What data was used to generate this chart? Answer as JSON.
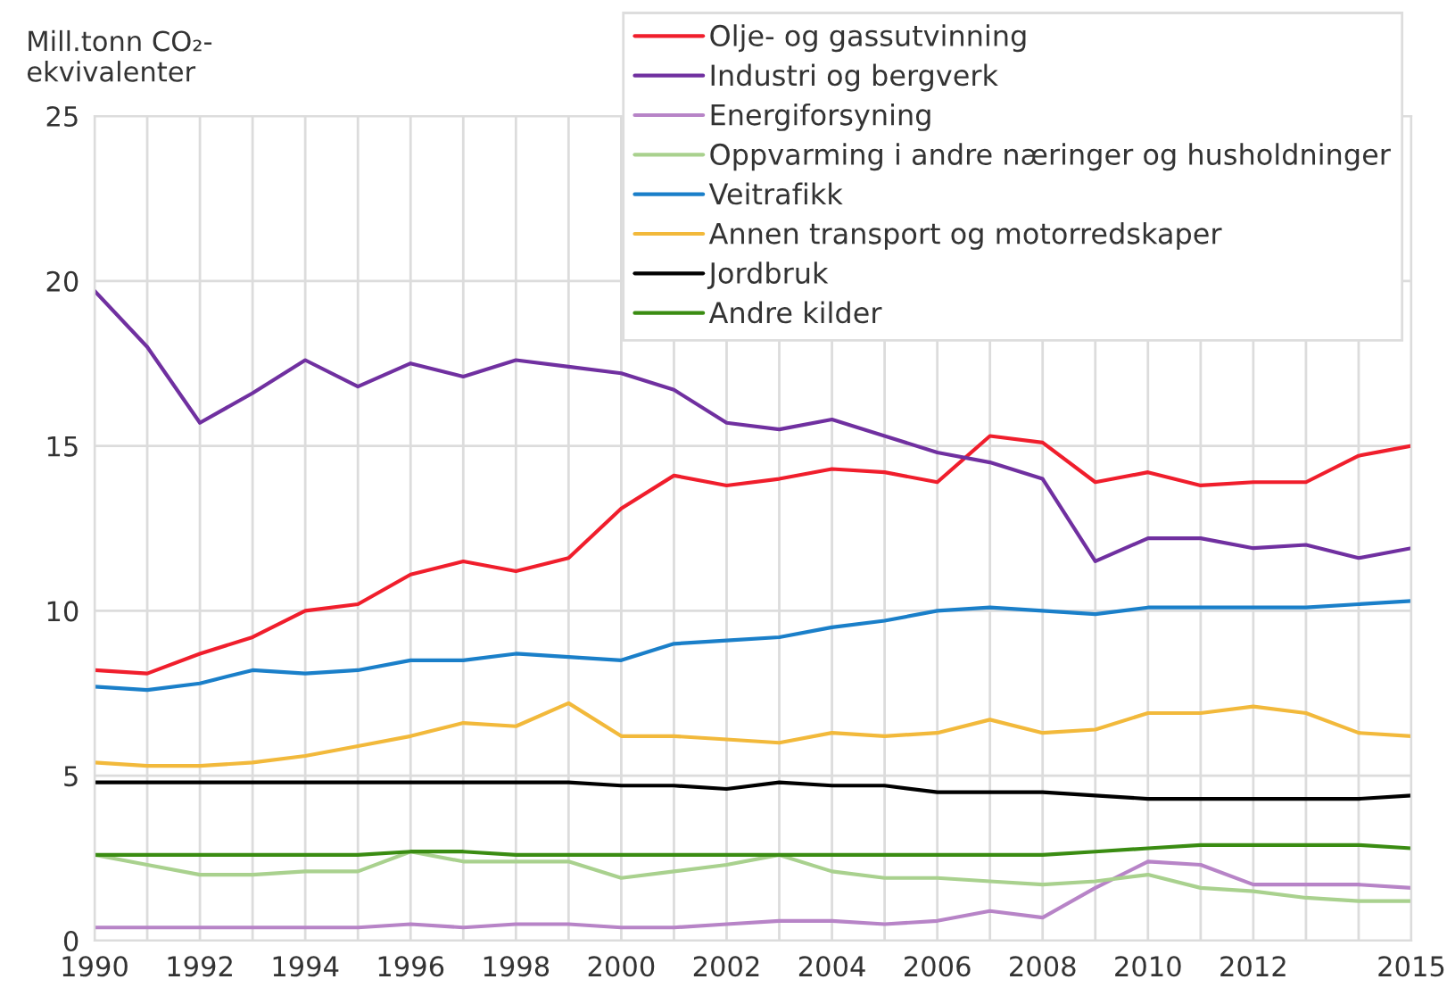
{
  "chart_data": {
    "type": "line",
    "ylabel": "Mill.tonn CO₂-\nekvivalenter",
    "x": [
      1990,
      1991,
      1992,
      1993,
      1994,
      1995,
      1996,
      1997,
      1998,
      1999,
      2000,
      2001,
      2002,
      2003,
      2004,
      2005,
      2006,
      2007,
      2008,
      2009,
      2010,
      2011,
      2012,
      2013,
      2014,
      2015
    ],
    "series": [
      {
        "name": "Olje- og gassutvinning",
        "color": "#f01e2c",
        "values": [
          8.2,
          8.1,
          8.7,
          9.2,
          10.0,
          10.2,
          11.1,
          11.5,
          11.2,
          11.6,
          13.1,
          14.1,
          13.8,
          14.0,
          14.3,
          14.2,
          13.9,
          15.3,
          15.1,
          13.9,
          14.2,
          13.8,
          13.9,
          13.9,
          14.7,
          15.0
        ]
      },
      {
        "name": "Industri og bergverk",
        "color": "#7030a0",
        "values": [
          19.7,
          18.0,
          15.7,
          16.6,
          17.6,
          16.8,
          17.5,
          17.1,
          17.6,
          17.4,
          17.2,
          16.7,
          15.7,
          15.5,
          15.8,
          15.3,
          14.8,
          14.5,
          14.0,
          11.5,
          12.2,
          12.2,
          11.9,
          12.0,
          11.6,
          11.9
        ]
      },
      {
        "name": "Energiforsyning",
        "color": "#b784c7",
        "values": [
          0.4,
          0.4,
          0.4,
          0.4,
          0.4,
          0.4,
          0.5,
          0.4,
          0.5,
          0.5,
          0.4,
          0.4,
          0.5,
          0.6,
          0.6,
          0.5,
          0.6,
          0.9,
          0.7,
          1.6,
          2.4,
          2.3,
          1.7,
          1.7,
          1.7,
          1.6
        ]
      },
      {
        "name": "Oppvarming i andre næringer og husholdninger",
        "color": "#a9d18e",
        "values": [
          2.6,
          2.3,
          2.0,
          2.0,
          2.1,
          2.1,
          2.7,
          2.4,
          2.4,
          2.4,
          1.9,
          2.1,
          2.3,
          2.6,
          2.1,
          1.9,
          1.9,
          1.8,
          1.7,
          1.8,
          2.0,
          1.6,
          1.5,
          1.3,
          1.2,
          1.2
        ]
      },
      {
        "name": "Veitrafikk",
        "color": "#1a7fc9",
        "values": [
          7.7,
          7.6,
          7.8,
          8.2,
          8.1,
          8.2,
          8.5,
          8.5,
          8.7,
          8.6,
          8.5,
          9.0,
          9.1,
          9.2,
          9.5,
          9.7,
          10.0,
          10.1,
          10.0,
          9.9,
          10.1,
          10.1,
          10.1,
          10.1,
          10.2,
          10.3
        ]
      },
      {
        "name": "Annen transport og motorredskaper",
        "color": "#f2b93b",
        "values": [
          5.4,
          5.3,
          5.3,
          5.4,
          5.6,
          5.9,
          6.2,
          6.6,
          6.5,
          7.2,
          6.2,
          6.2,
          6.1,
          6.0,
          6.3,
          6.2,
          6.3,
          6.7,
          6.3,
          6.4,
          6.9,
          6.9,
          7.1,
          6.9,
          6.3,
          6.2
        ]
      },
      {
        "name": "Jordbruk",
        "color": "#000000",
        "values": [
          4.8,
          4.8,
          4.8,
          4.8,
          4.8,
          4.8,
          4.8,
          4.8,
          4.8,
          4.8,
          4.7,
          4.7,
          4.6,
          4.8,
          4.7,
          4.7,
          4.5,
          4.5,
          4.5,
          4.4,
          4.3,
          4.3,
          4.3,
          4.3,
          4.3,
          4.4
        ]
      },
      {
        "name": "Andre kilder",
        "color": "#3a8c12",
        "values": [
          2.6,
          2.6,
          2.6,
          2.6,
          2.6,
          2.6,
          2.7,
          2.7,
          2.6,
          2.6,
          2.6,
          2.6,
          2.6,
          2.6,
          2.6,
          2.6,
          2.6,
          2.6,
          2.6,
          2.7,
          2.8,
          2.9,
          2.9,
          2.9,
          2.9,
          2.8
        ]
      }
    ],
    "xlim": [
      1990,
      2015
    ],
    "xticks": [
      1990,
      {
        "value": 1991,
        "label": null
      },
      1992,
      {
        "value": 1993,
        "label": null
      },
      1994,
      {
        "value": 1995,
        "label": null
      },
      1996,
      {
        "value": 1997,
        "label": null
      },
      1998,
      {
        "value": 1999,
        "label": null
      },
      2000,
      {
        "value": 2001,
        "label": null
      },
      2002,
      {
        "value": 2003,
        "label": null
      },
      2004,
      {
        "value": 2005,
        "label": null
      },
      2006,
      {
        "value": 2007,
        "label": null
      },
      2008,
      {
        "value": 2009,
        "label": null
      },
      2010,
      {
        "value": 2011,
        "label": null
      },
      2012,
      {
        "value": 2013,
        "label": null
      },
      {
        "value": 2014,
        "label": null
      },
      2015
    ],
    "ylim": [
      0,
      25
    ],
    "yticks": [
      0,
      5,
      10,
      15,
      20,
      25
    ],
    "grid": true,
    "legend": "top right",
    "line_style": "solid"
  }
}
